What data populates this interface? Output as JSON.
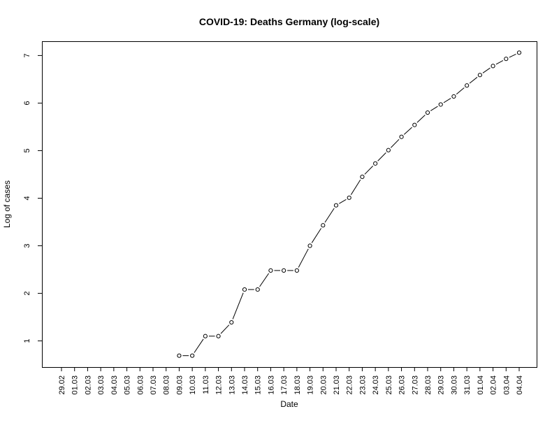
{
  "chart_data": {
    "type": "line",
    "title": "COVID-19: Deaths Germany (log-scale)",
    "xlabel": "Date",
    "ylabel": "Log of cases",
    "x": [
      "29.02",
      "01.03",
      "02.03",
      "03.03",
      "04.03",
      "05.03",
      "06.03",
      "07.03",
      "08.03",
      "09.03",
      "10.03",
      "11.03",
      "12.03",
      "13.03",
      "14.03",
      "15.03",
      "16.03",
      "17.03",
      "18.03",
      "19.03",
      "20.03",
      "21.03",
      "22.03",
      "23.03",
      "24.03",
      "25.03",
      "26.03",
      "27.03",
      "28.03",
      "29.03",
      "30.03",
      "31.03",
      "01.04",
      "02.04",
      "03.04",
      "04.04"
    ],
    "series": [
      {
        "values": [
          null,
          null,
          null,
          null,
          null,
          null,
          null,
          null,
          null,
          0.69,
          0.69,
          1.1,
          1.1,
          1.39,
          2.08,
          2.08,
          2.48,
          2.48,
          2.48,
          3.0,
          3.43,
          3.85,
          4.01,
          4.45,
          4.73,
          5.01,
          5.29,
          5.54,
          5.8,
          5.97,
          6.14,
          6.37,
          6.59,
          6.78,
          6.93,
          7.06
        ],
        "marker": "open-circle",
        "color": "#000000"
      }
    ],
    "yticks": [
      1,
      2,
      3,
      4,
      5,
      6,
      7
    ],
    "ylim": [
      0.45,
      7.3
    ],
    "grid": false,
    "legend": "none"
  }
}
